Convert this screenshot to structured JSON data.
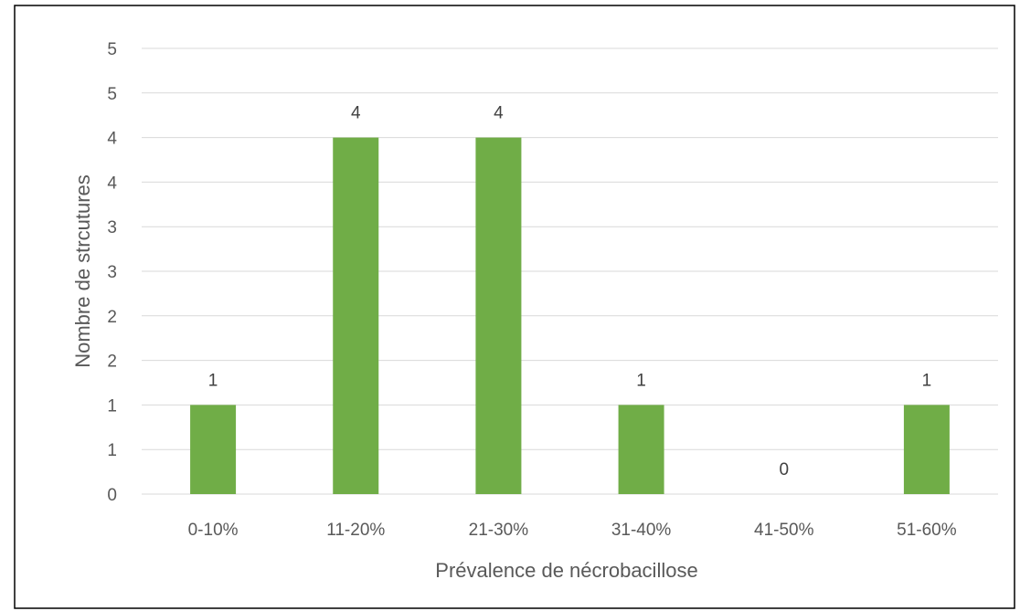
{
  "chart_data": {
    "type": "bar",
    "xlabel": "Prévalence de nécrobacillose",
    "ylabel": "Nombre de strcutures",
    "categories": [
      "0-10%",
      "11-20%",
      "21-30%",
      "31-40%",
      "41-50%",
      "51-60%"
    ],
    "series": [
      {
        "values": [
          1,
          4,
          4,
          1,
          0,
          1
        ],
        "color": "#70ad47"
      }
    ],
    "data_labels": [
      "1",
      "4",
      "4",
      "1",
      "0",
      "1"
    ],
    "y_tick_labels": [
      "0",
      "1",
      "1",
      "2",
      "2",
      "3",
      "3",
      "4",
      "4",
      "5",
      "5"
    ],
    "ylim": [
      0,
      5
    ],
    "grid": true,
    "legend": "none"
  }
}
